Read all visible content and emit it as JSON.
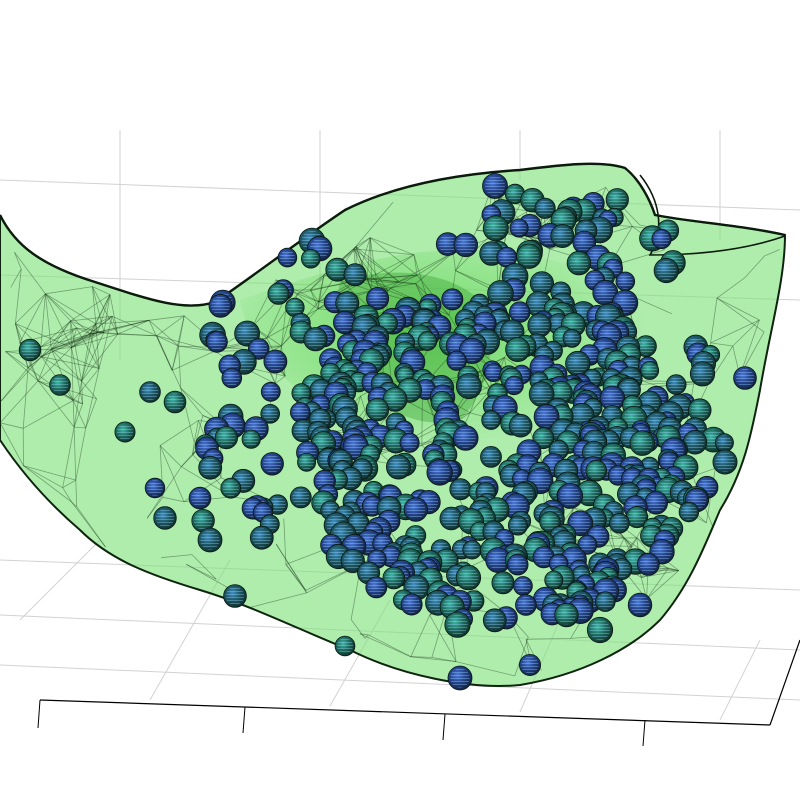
{
  "scene": {
    "kind": "3d-mesh-render",
    "colors": {
      "background": "#ffffff",
      "grid": "#d0d0d0",
      "axis": "#000000",
      "mesh_fill": "#7be07b",
      "mesh_fill_dark": "#3fb43f",
      "mesh_edge": "#1b3a1b",
      "sphere_base": "#1f5a4a",
      "sphere_blue": "#2b4fa0",
      "sphere_teal": "#1e7b6e",
      "sphere_highlight": "#53a8d8"
    }
  }
}
